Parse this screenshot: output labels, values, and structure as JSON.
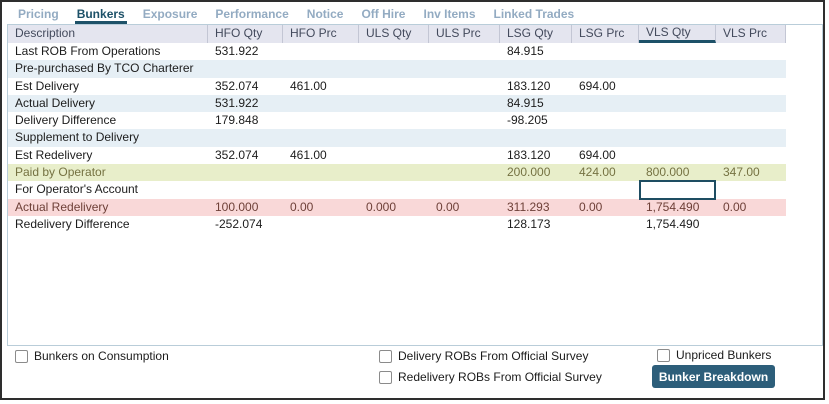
{
  "tab_bar": {
    "tabs": [
      {
        "label": "Pricing",
        "active": false
      },
      {
        "label": "Bunkers",
        "active": true
      },
      {
        "label": "Exposure",
        "active": false
      },
      {
        "label": "Performance",
        "active": false
      },
      {
        "label": "Notice",
        "active": false
      },
      {
        "label": "Off Hire",
        "active": false
      },
      {
        "label": "Inv Items",
        "active": false
      },
      {
        "label": "Linked Trades",
        "active": false
      }
    ]
  },
  "grid": {
    "columns": [
      "Description",
      "HFO Qty",
      "HFO Prc",
      "ULS Qty",
      "ULS Prc",
      "LSG Qty",
      "LSG Prc",
      "VLS Qty",
      "VLS Prc"
    ],
    "selected_column": "VLS Qty",
    "rows": [
      {
        "label": "Last ROB From Operations",
        "style": "normal",
        "cells": [
          "531.922",
          "",
          "",
          "",
          "84.915",
          "",
          "",
          ""
        ]
      },
      {
        "label": "Pre-purchased By TCO Charterer",
        "style": "alt",
        "cells": [
          "",
          "",
          "",
          "",
          "",
          "",
          "",
          ""
        ]
      },
      {
        "label": "Est Delivery",
        "style": "normal",
        "cells": [
          "352.074",
          "461.00",
          "",
          "",
          "183.120",
          "694.00",
          "",
          ""
        ]
      },
      {
        "label": "Actual Delivery",
        "style": "alt",
        "cells": [
          "531.922",
          "",
          "",
          "",
          "84.915",
          "",
          "",
          ""
        ]
      },
      {
        "label": "Delivery Difference",
        "style": "normal",
        "cells": [
          "179.848",
          "",
          "",
          "",
          "-98.205",
          "",
          "",
          ""
        ]
      },
      {
        "label": "Supplement to Delivery",
        "style": "alt",
        "cells": [
          "",
          "",
          "",
          "",
          "",
          "",
          "",
          ""
        ]
      },
      {
        "label": "Est Redelivery",
        "style": "normal",
        "cells": [
          "352.074",
          "461.00",
          "",
          "",
          "183.120",
          "694.00",
          "",
          ""
        ]
      },
      {
        "label": "Paid by Operator",
        "style": "paid",
        "cells": [
          "",
          "",
          "",
          "",
          "200.000",
          "424.00",
          "800.000",
          "347.00"
        ]
      },
      {
        "label": "For Operator's Account",
        "style": "normal",
        "cells": [
          "",
          "",
          "",
          "",
          "",
          "",
          "",
          ""
        ],
        "focused_cell_col": "VLS Qty"
      },
      {
        "label": "Actual Redelivery",
        "style": "redelivery",
        "cells": [
          "100.000",
          "0.00",
          "0.000",
          "0.00",
          "311.293",
          "0.00",
          "1,754.490",
          "0.00"
        ]
      },
      {
        "label": "Redelivery Difference",
        "style": "normal",
        "cells": [
          "-252.074",
          "",
          "",
          "",
          "128.173",
          "",
          "1,754.490",
          ""
        ]
      }
    ]
  },
  "footer": {
    "checkboxes": [
      {
        "label": "Bunkers on Consumption",
        "checked": false
      },
      {
        "label": "Delivery ROBs From Official Survey",
        "checked": false
      },
      {
        "label": "Redelivery ROBs From Official Survey",
        "checked": false
      },
      {
        "label": "Unpriced Bunkers",
        "checked": false
      }
    ],
    "button_label": "Bunker Breakdown"
  },
  "colors": {
    "tab_active": "#1d5168",
    "tab_inactive": "#93abc2",
    "header_bg": "#e4e5ef",
    "alt_row_bg": "#e6eff5",
    "paid_row_bg": "#e8eeca",
    "paid_row_text": "#757242",
    "redelivery_row_bg": "#f9d8d8",
    "redelivery_row_text": "#6e4038",
    "button_bg": "#2d5e7a",
    "focused_cell_border": "#1e4d62"
  }
}
